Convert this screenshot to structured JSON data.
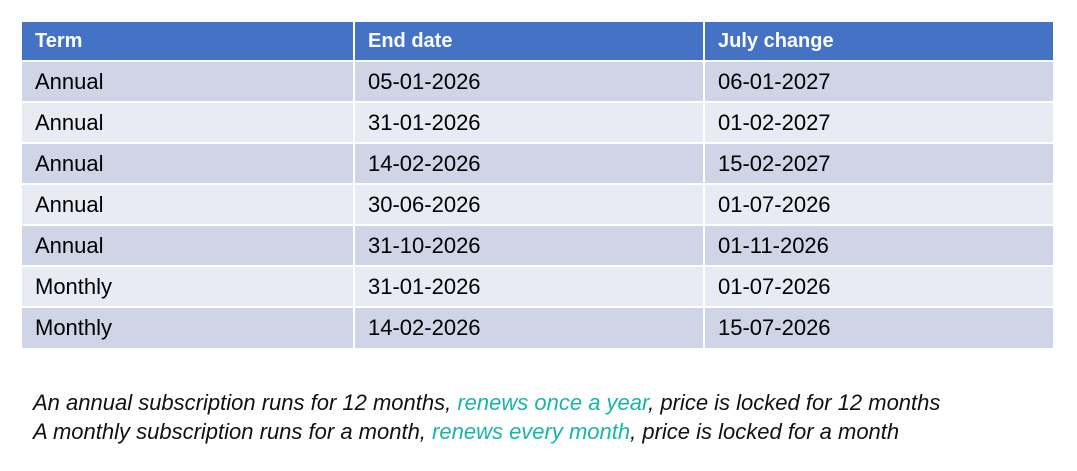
{
  "table": {
    "columns": [
      "Term",
      "End date",
      "July change"
    ],
    "rows": [
      [
        "Annual",
        "05-01-2026",
        "06-01-2027"
      ],
      [
        "Annual",
        "31-01-2026",
        "01-02-2027"
      ],
      [
        "Annual",
        "14-02-2026",
        "15-02-2027"
      ],
      [
        "Annual",
        "30-06-2026",
        "01-07-2026"
      ],
      [
        "Annual",
        "31-10-2026",
        "01-11-2026"
      ],
      [
        "Monthly",
        "31-01-2026",
        "01-07-2026"
      ],
      [
        "Monthly",
        "14-02-2026",
        "15-07-2026"
      ]
    ]
  },
  "notes": {
    "line1": {
      "pre": "An annual subscription runs for 12 months, ",
      "highlight": "renews once a year",
      "post": ", price is locked for 12 months"
    },
    "line2": {
      "pre": "A monthly subscription runs for a month, ",
      "highlight": "renews every month",
      "post": ", price is locked for a month"
    }
  },
  "colors": {
    "header_bg": "#4472C4",
    "row_band_dark": "#CFD4E6",
    "row_band_light": "#E9EBF4",
    "highlight_text": "#18B6A6",
    "header_text": "#FFFFFF",
    "body_text": "#000000"
  }
}
